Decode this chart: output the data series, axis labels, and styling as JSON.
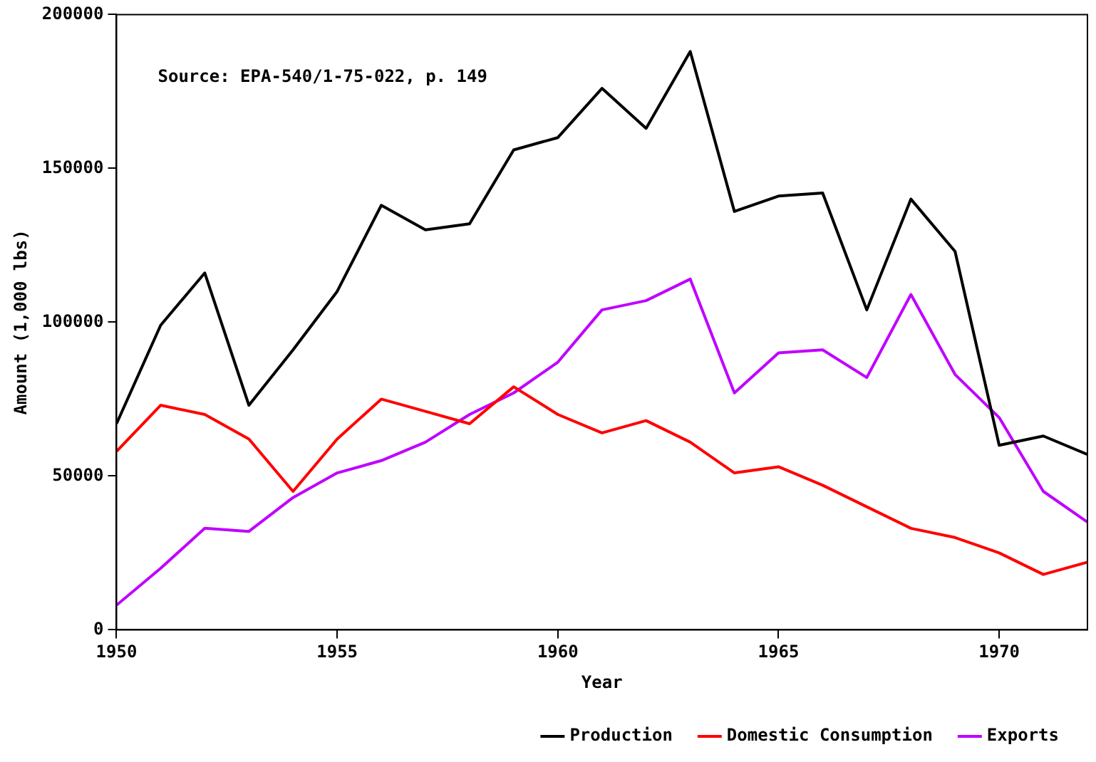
{
  "chart_data": {
    "type": "line",
    "xlabel": "Year",
    "ylabel": "Amount (1,000 lbs)",
    "annotations": [
      "Source: EPA-540/1-75-022, p. 149"
    ],
    "x": [
      1950,
      1951,
      1952,
      1953,
      1954,
      1955,
      1956,
      1957,
      1958,
      1959,
      1960,
      1961,
      1962,
      1963,
      1964,
      1965,
      1966,
      1967,
      1968,
      1969,
      1970,
      1971,
      1972
    ],
    "series": [
      {
        "name": "Production",
        "color": "#000000",
        "values": [
          67000,
          99000,
          116000,
          73000,
          91000,
          110000,
          138000,
          130000,
          132000,
          156000,
          160000,
          176000,
          163000,
          188000,
          136000,
          141000,
          142000,
          104000,
          140000,
          123000,
          60000,
          63000,
          57000
        ]
      },
      {
        "name": "Domestic Consumption",
        "color": "#ff0000",
        "values": [
          58000,
          73000,
          70000,
          62000,
          45000,
          62000,
          75000,
          71000,
          67000,
          79000,
          70000,
          64000,
          68000,
          61000,
          51000,
          53000,
          47000,
          40000,
          33000,
          30000,
          25000,
          18000,
          22000
        ]
      },
      {
        "name": "Exports",
        "color": "#bf00ff",
        "values": [
          8000,
          20000,
          33000,
          32000,
          43000,
          51000,
          55000,
          61000,
          70000,
          77000,
          87000,
          104000,
          107000,
          114000,
          77000,
          90000,
          91000,
          82000,
          109000,
          83000,
          69000,
          45000,
          35000
        ]
      }
    ],
    "xlim": [
      1950,
      1972
    ],
    "xticks": [
      1950,
      1955,
      1960,
      1965,
      1970
    ],
    "ylim": [
      0,
      200000
    ],
    "yticks": [
      0,
      50000,
      100000,
      150000,
      200000
    ],
    "grid": false,
    "legend": "bottom",
    "marker": "none",
    "line_style": "solid"
  }
}
